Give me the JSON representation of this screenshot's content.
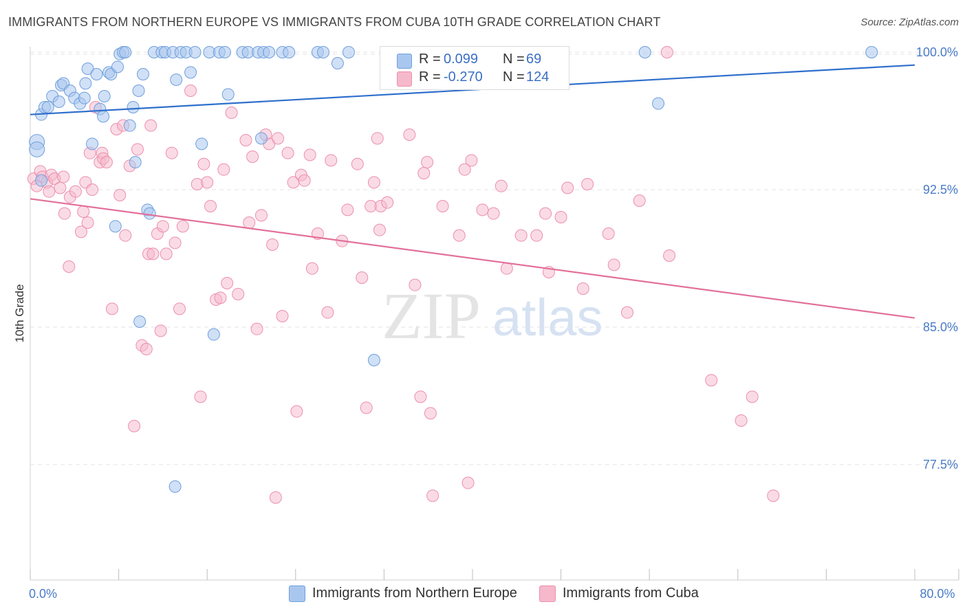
{
  "title": "IMMIGRANTS FROM NORTHERN EUROPE VS IMMIGRANTS FROM CUBA 10TH GRADE CORRELATION CHART",
  "source": "Source: ZipAtlas.com",
  "watermark": {
    "zip": "ZIP",
    "atlas": "atlas"
  },
  "legend_top": {
    "rows": [
      {
        "r_label": "R =",
        "r_value": "0.099",
        "n_label": "N =",
        "n_value": "69"
      },
      {
        "r_label": "R =",
        "r_value": "-0.270",
        "n_label": "N =",
        "n_value": "124"
      }
    ]
  },
  "legend_bottom": {
    "items": [
      "Immigrants from Northern Europe",
      "Immigrants from Cuba"
    ]
  },
  "colors": {
    "blue_fill": "#a9c7ee",
    "blue_stroke": "#6f9fdc",
    "blue_line": "#2f6fcc",
    "pink_fill": "#f6b8cb",
    "pink_stroke": "#ec8fad",
    "pink_line": "#e2709a",
    "grid": "#e3e3e3",
    "tick_text": "#4a7cc7"
  },
  "chart_data": {
    "type": "scatter",
    "title": "IMMIGRANTS FROM NORTHERN EUROPE VS IMMIGRANTS FROM CUBA 10TH GRADE CORRELATION CHART",
    "xlabel": "",
    "ylabel": "10th Grade",
    "xlim": [
      0,
      80
    ],
    "ylim": [
      71.2,
      100.3
    ],
    "x_tick_labels": [
      {
        "value": 0,
        "label": "0.0%"
      },
      {
        "value": 80,
        "label": "80.0%"
      }
    ],
    "y_tick_labels": [
      {
        "value": 100,
        "label": "100.0%"
      },
      {
        "value": 92.5,
        "label": "92.5%"
      },
      {
        "value": 85,
        "label": "85.0%"
      },
      {
        "value": 77.5,
        "label": "77.5%"
      }
    ],
    "grid": true,
    "legend_placement": "bottom",
    "series": [
      {
        "name": "Immigrants from Northern Europe",
        "R": 0.099,
        "N": 69,
        "trend": {
          "x": [
            0,
            80
          ],
          "y": [
            96.6,
            99.3
          ]
        },
        "points": [
          [
            0.6,
            95.1
          ],
          [
            0.6,
            94.7
          ],
          [
            1.0,
            96.6
          ],
          [
            1.3,
            97.0
          ],
          [
            1.6,
            97.0
          ],
          [
            2.0,
            97.6
          ],
          [
            2.6,
            97.3
          ],
          [
            2.8,
            98.2
          ],
          [
            3.0,
            98.3
          ],
          [
            3.6,
            97.9
          ],
          [
            4.0,
            97.5
          ],
          [
            4.5,
            97.2
          ],
          [
            4.9,
            97.5
          ],
          [
            5.0,
            98.3
          ],
          [
            5.2,
            99.1
          ],
          [
            6.0,
            98.8
          ],
          [
            6.3,
            96.9
          ],
          [
            6.6,
            96.5
          ],
          [
            6.7,
            97.6
          ],
          [
            7.1,
            98.9
          ],
          [
            7.3,
            98.8
          ],
          [
            7.9,
            99.2
          ],
          [
            8.1,
            99.9
          ],
          [
            8.4,
            100.0
          ],
          [
            8.6,
            100.0
          ],
          [
            9.0,
            96.0
          ],
          [
            9.3,
            97.0
          ],
          [
            9.8,
            97.9
          ],
          [
            10.2,
            98.8
          ],
          [
            11.2,
            100.0
          ],
          [
            11.9,
            100.0
          ],
          [
            12.2,
            100.0
          ],
          [
            12.9,
            100.0
          ],
          [
            13.2,
            98.5
          ],
          [
            13.6,
            100.0
          ],
          [
            14.1,
            100.0
          ],
          [
            14.5,
            98.9
          ],
          [
            14.9,
            100.0
          ],
          [
            16.2,
            100.0
          ],
          [
            17.1,
            100.0
          ],
          [
            17.6,
            100.0
          ],
          [
            19.2,
            100.0
          ],
          [
            19.7,
            100.0
          ],
          [
            20.6,
            100.0
          ],
          [
            21.1,
            100.0
          ],
          [
            21.6,
            100.0
          ],
          [
            22.8,
            100.0
          ],
          [
            23.4,
            100.0
          ],
          [
            26.0,
            100.0
          ],
          [
            26.5,
            100.0
          ],
          [
            27.8,
            99.4
          ],
          [
            28.8,
            100.0
          ],
          [
            33.2,
            100.0
          ],
          [
            55.6,
            100.0
          ],
          [
            56.8,
            97.2
          ],
          [
            76.1,
            100.0
          ],
          [
            17.9,
            97.7
          ],
          [
            20.9,
            95.3
          ],
          [
            15.5,
            95.0
          ],
          [
            5.6,
            95.0
          ],
          [
            9.5,
            94.0
          ],
          [
            10.6,
            91.4
          ],
          [
            10.8,
            91.2
          ],
          [
            7.7,
            90.5
          ],
          [
            9.9,
            85.3
          ],
          [
            16.6,
            84.6
          ],
          [
            31.1,
            83.2
          ],
          [
            13.1,
            76.3
          ],
          [
            1.0,
            93.0
          ]
        ]
      },
      {
        "name": "Immigrants from Cuba",
        "R": -0.27,
        "N": 124,
        "trend": {
          "x": [
            0,
            80
          ],
          "y": [
            92.0,
            85.5
          ]
        },
        "points": [
          [
            0.3,
            93.1
          ],
          [
            0.6,
            92.7
          ],
          [
            0.9,
            93.5
          ],
          [
            1.1,
            93.2
          ],
          [
            1.5,
            92.9
          ],
          [
            1.7,
            92.4
          ],
          [
            1.9,
            93.3
          ],
          [
            2.2,
            93.1
          ],
          [
            2.7,
            92.6
          ],
          [
            3.0,
            93.2
          ],
          [
            3.1,
            91.2
          ],
          [
            3.5,
            88.3
          ],
          [
            3.6,
            92.1
          ],
          [
            4.1,
            92.4
          ],
          [
            4.6,
            90.2
          ],
          [
            4.8,
            91.3
          ],
          [
            5.0,
            92.9
          ],
          [
            5.2,
            90.7
          ],
          [
            5.4,
            94.5
          ],
          [
            5.6,
            92.5
          ],
          [
            5.9,
            97.0
          ],
          [
            6.3,
            94.0
          ],
          [
            6.5,
            94.5
          ],
          [
            6.6,
            94.2
          ],
          [
            6.9,
            94.0
          ],
          [
            7.4,
            86.0
          ],
          [
            7.8,
            95.8
          ],
          [
            8.1,
            92.2
          ],
          [
            8.4,
            96.0
          ],
          [
            8.6,
            90.0
          ],
          [
            9.0,
            93.8
          ],
          [
            9.4,
            79.6
          ],
          [
            9.7,
            94.7
          ],
          [
            10.1,
            84.0
          ],
          [
            10.5,
            83.8
          ],
          [
            10.7,
            89.0
          ],
          [
            10.9,
            96.0
          ],
          [
            11.1,
            89.0
          ],
          [
            11.5,
            90.1
          ],
          [
            11.8,
            84.8
          ],
          [
            12.0,
            90.5
          ],
          [
            12.3,
            89.0
          ],
          [
            12.8,
            94.5
          ],
          [
            13.1,
            89.6
          ],
          [
            13.5,
            86.0
          ],
          [
            13.8,
            90.5
          ],
          [
            14.5,
            97.9
          ],
          [
            15.1,
            92.8
          ],
          [
            15.4,
            81.2
          ],
          [
            15.7,
            93.9
          ],
          [
            16.0,
            92.9
          ],
          [
            16.3,
            91.6
          ],
          [
            16.8,
            86.5
          ],
          [
            17.2,
            86.6
          ],
          [
            17.5,
            93.6
          ],
          [
            17.8,
            87.4
          ],
          [
            18.2,
            96.7
          ],
          [
            18.8,
            86.8
          ],
          [
            19.5,
            95.2
          ],
          [
            19.8,
            90.7
          ],
          [
            20.1,
            94.3
          ],
          [
            20.5,
            84.9
          ],
          [
            20.9,
            91.1
          ],
          [
            21.3,
            95.5
          ],
          [
            21.6,
            95.0
          ],
          [
            21.9,
            89.5
          ],
          [
            22.4,
            95.3
          ],
          [
            22.8,
            85.6
          ],
          [
            23.3,
            94.5
          ],
          [
            23.8,
            92.9
          ],
          [
            24.1,
            80.4
          ],
          [
            24.5,
            93.3
          ],
          [
            24.8,
            93.0
          ],
          [
            25.3,
            94.4
          ],
          [
            25.5,
            88.2
          ],
          [
            26.0,
            90.1
          ],
          [
            26.9,
            85.8
          ],
          [
            27.2,
            94.1
          ],
          [
            28.2,
            89.7
          ],
          [
            28.7,
            91.4
          ],
          [
            29.6,
            93.9
          ],
          [
            30.0,
            87.7
          ],
          [
            30.4,
            80.6
          ],
          [
            30.8,
            91.6
          ],
          [
            31.1,
            92.9
          ],
          [
            31.4,
            95.3
          ],
          [
            31.6,
            90.3
          ],
          [
            31.7,
            91.6
          ],
          [
            32.3,
            91.8
          ],
          [
            34.3,
            95.5
          ],
          [
            34.8,
            87.3
          ],
          [
            35.3,
            81.2
          ],
          [
            35.6,
            93.4
          ],
          [
            35.9,
            94.0
          ],
          [
            36.2,
            80.3
          ],
          [
            36.4,
            75.8
          ],
          [
            37.3,
            91.6
          ],
          [
            38.8,
            90.0
          ],
          [
            39.3,
            93.6
          ],
          [
            39.6,
            76.5
          ],
          [
            39.9,
            94.1
          ],
          [
            40.9,
            91.4
          ],
          [
            41.9,
            91.2
          ],
          [
            42.6,
            92.7
          ],
          [
            43.1,
            88.2
          ],
          [
            44.4,
            90.0
          ],
          [
            45.8,
            90.0
          ],
          [
            46.6,
            91.2
          ],
          [
            46.9,
            88.0
          ],
          [
            48.0,
            91.0
          ],
          [
            48.6,
            92.6
          ],
          [
            50.0,
            87.1
          ],
          [
            50.4,
            92.8
          ],
          [
            52.3,
            90.1
          ],
          [
            52.8,
            88.4
          ],
          [
            54.0,
            85.8
          ],
          [
            55.1,
            91.9
          ],
          [
            57.6,
            100.0
          ],
          [
            57.8,
            88.9
          ],
          [
            61.6,
            82.1
          ],
          [
            64.3,
            79.9
          ],
          [
            65.3,
            81.2
          ],
          [
            67.2,
            75.8
          ],
          [
            22.2,
            75.7
          ]
        ]
      }
    ]
  }
}
